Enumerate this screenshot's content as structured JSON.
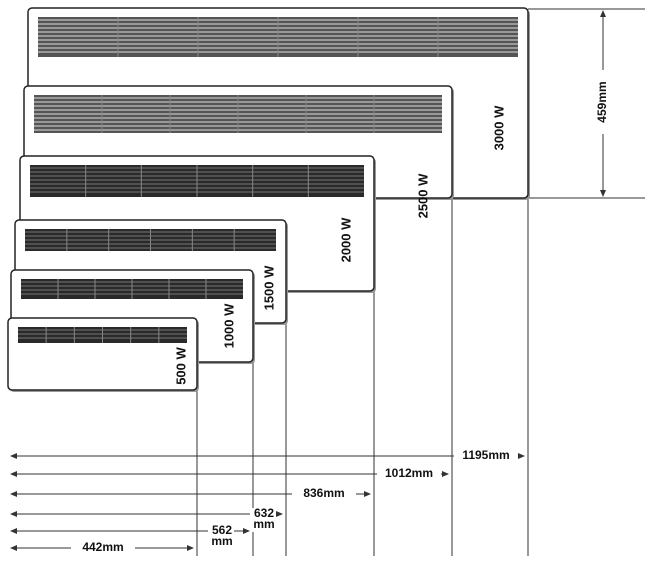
{
  "height": "459mm",
  "heaters": [
    {
      "power": "3000 W",
      "width": [
        "1195mm"
      ]
    },
    {
      "power": "2500 W",
      "width": [
        "1012mm"
      ]
    },
    {
      "power": "2000 W",
      "width": [
        "836mm"
      ]
    },
    {
      "power": "1500 W",
      "width": [
        "632",
        "mm"
      ]
    },
    {
      "power": "1000 W",
      "width": [
        "562",
        "mm"
      ]
    },
    {
      "power": "500 W",
      "width": [
        "442mm"
      ]
    }
  ]
}
